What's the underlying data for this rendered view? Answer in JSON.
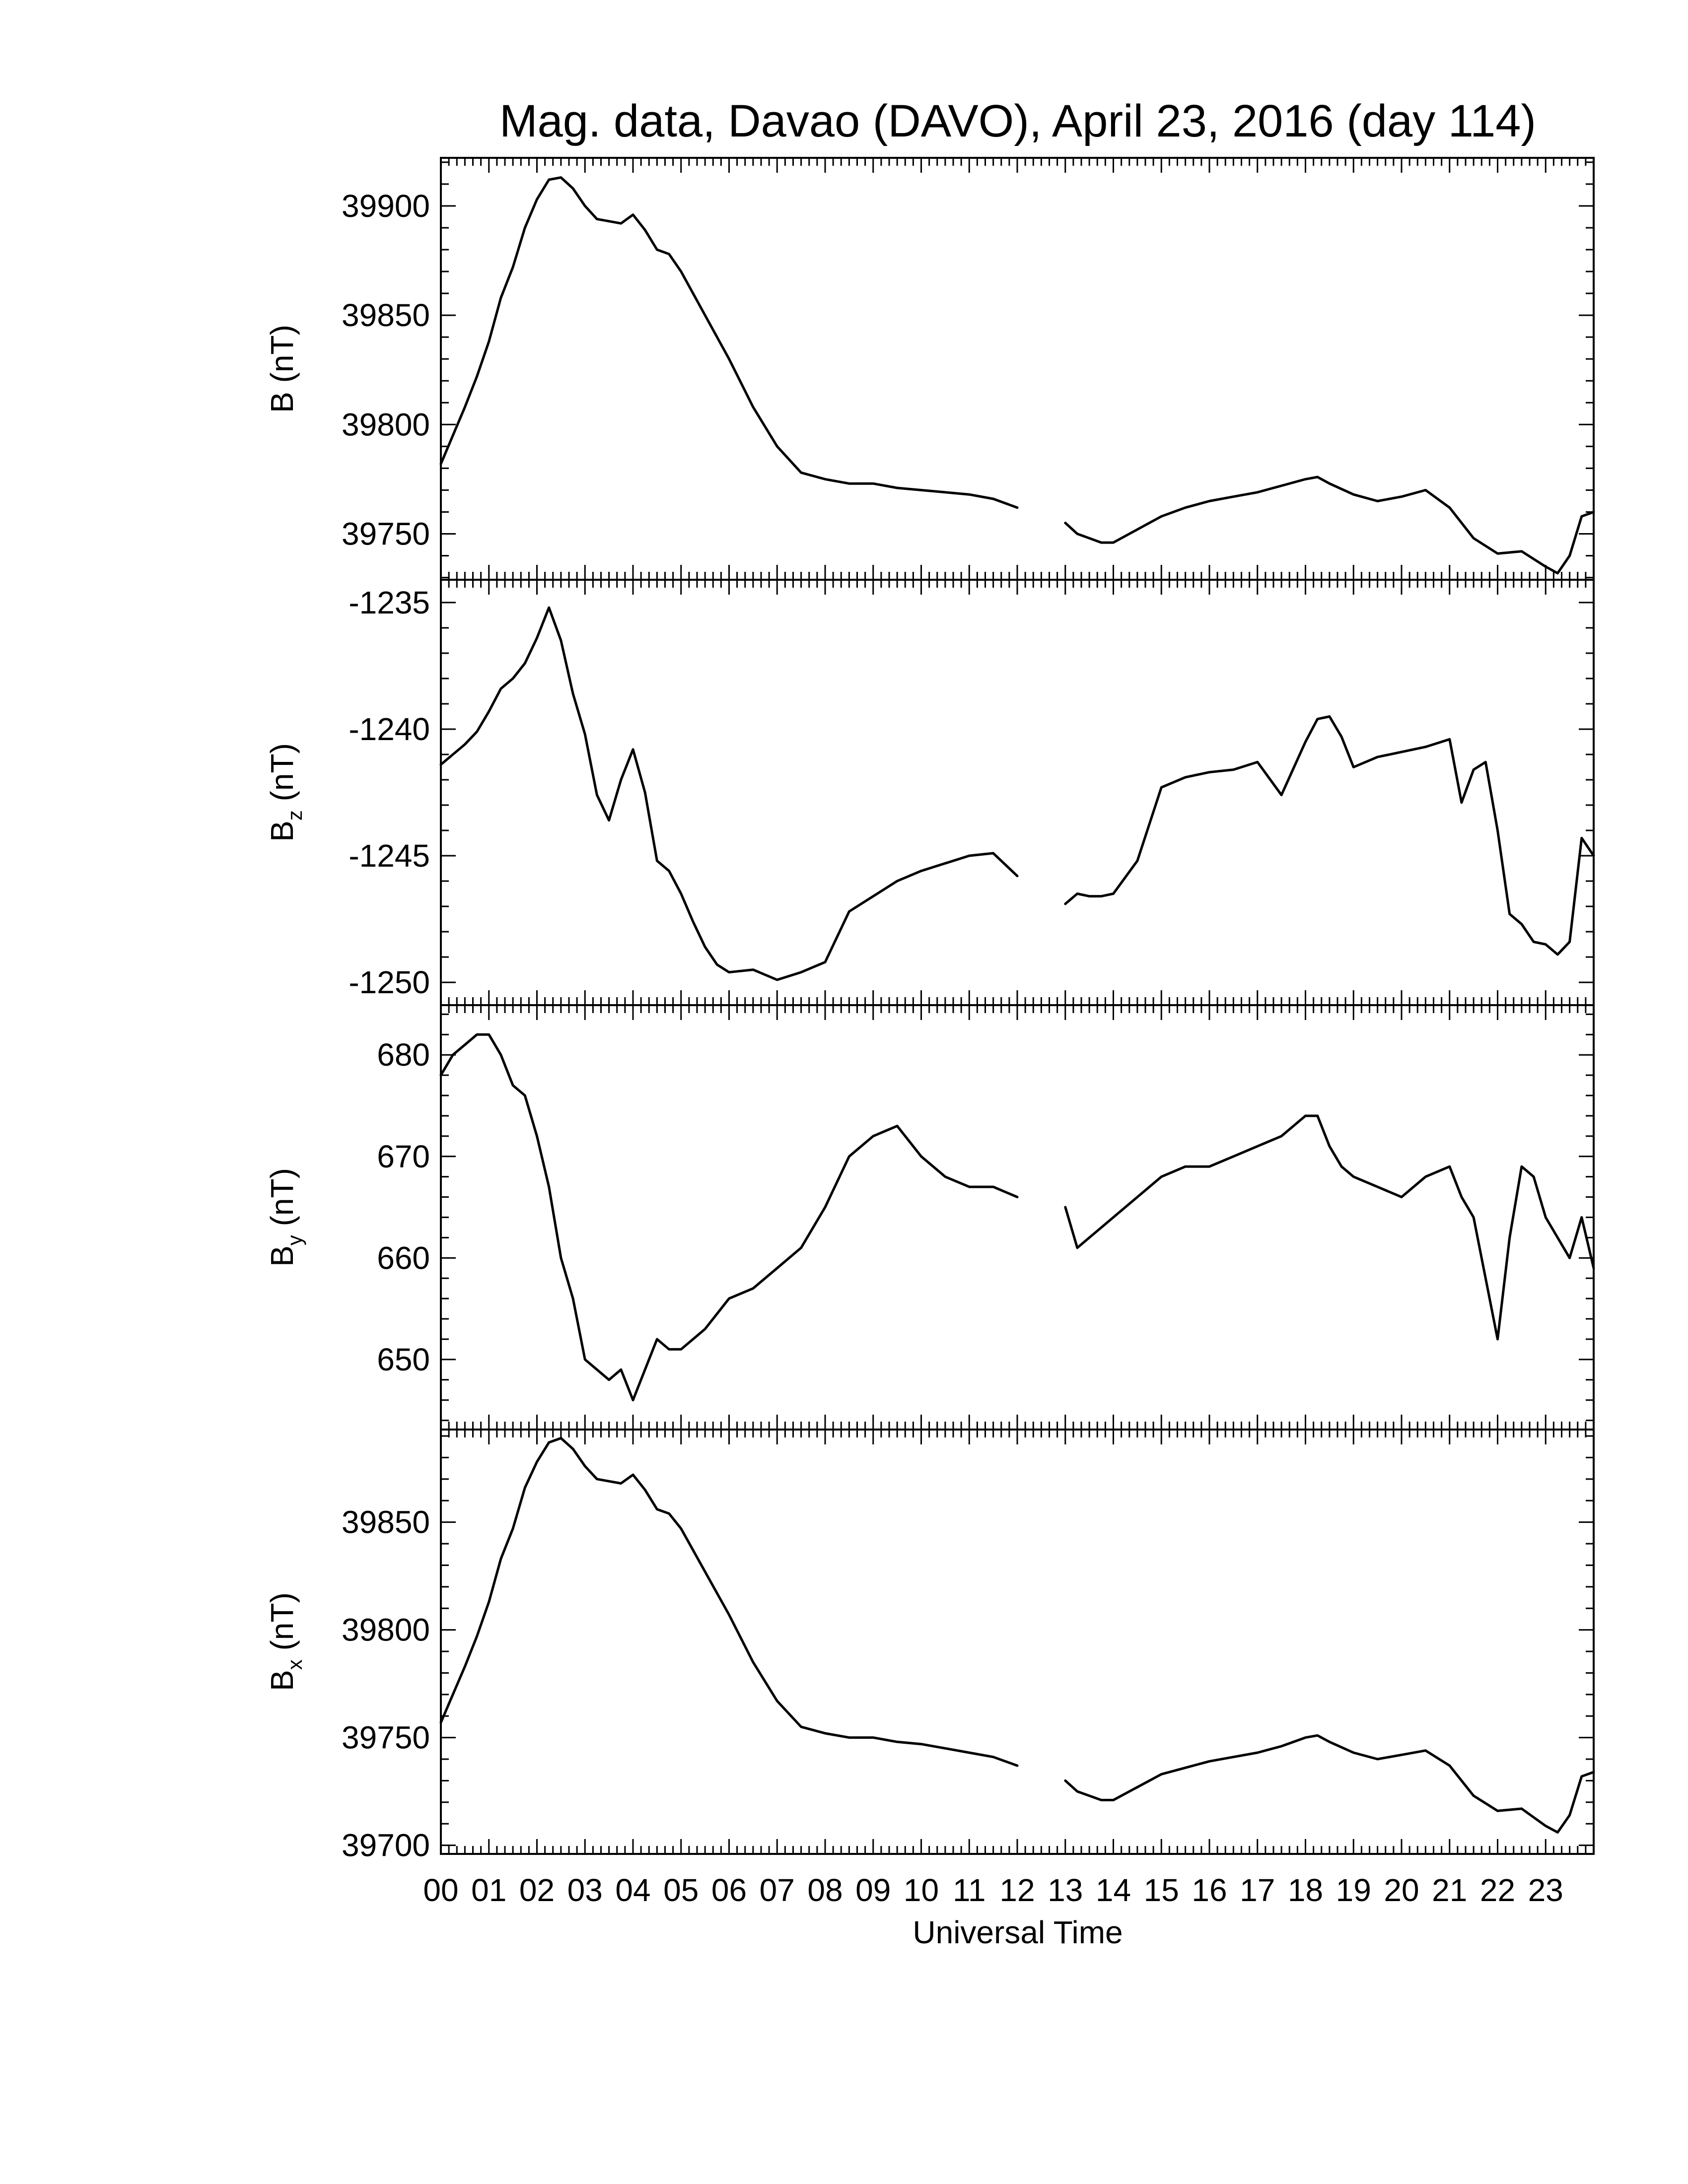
{
  "chart_data": {
    "type": "line",
    "title": "Mag. data, Davao (DAVO), April 23, 2016 (day 114)",
    "xlabel": "Universal Time",
    "x_unit": "hour (UT)",
    "xlim": [
      0,
      24
    ],
    "x_ticks": [
      "00",
      "01",
      "02",
      "03",
      "04",
      "05",
      "06",
      "07",
      "08",
      "09",
      "10",
      "11",
      "12",
      "13",
      "14",
      "15",
      "16",
      "17",
      "18",
      "19",
      "20",
      "21",
      "22",
      "23"
    ],
    "data_gap": [
      12.0,
      13.0
    ],
    "panels": [
      {
        "label_main": "B",
        "label_sub": "",
        "label_unit": "(nT)",
        "ylim": [
          39729,
          39922
        ],
        "y_ticks": [
          39750,
          39800,
          39850,
          39900
        ],
        "series": [
          {
            "x": [
              0,
              0.25,
              0.5,
              0.75,
              1,
              1.25,
              1.5,
              1.75,
              2,
              2.25,
              2.5,
              2.75,
              3,
              3.25,
              3.5,
              3.75,
              4,
              4.25,
              4.5,
              4.75,
              5,
              5.5,
              6,
              6.5,
              7,
              7.5,
              8,
              8.5,
              9,
              9.5,
              10,
              10.5,
              11,
              11.5,
              12,
              13,
              13.25,
              13.5,
              13.75,
              14,
              14.5,
              15,
              15.5,
              16,
              16.5,
              17,
              17.5,
              18,
              18.25,
              18.5,
              19,
              19.5,
              20,
              20.5,
              21,
              21.5,
              22,
              22.5,
              23,
              23.25,
              23.5,
              23.75,
              24
            ],
            "y": [
              39782,
              39795,
              39808,
              39822,
              39838,
              39858,
              39872,
              39890,
              39903,
              39912,
              39913,
              39908,
              39900,
              39894,
              39893,
              39892,
              39896,
              39889,
              39880,
              39878,
              39870,
              39850,
              39830,
              39808,
              39790,
              39778,
              39775,
              39773,
              39773,
              39771,
              39770,
              39769,
              39768,
              39766,
              39762,
              39755,
              39750,
              39748,
              39746,
              39746,
              39752,
              39758,
              39762,
              39765,
              39767,
              39769,
              39772,
              39775,
              39776,
              39773,
              39768,
              39765,
              39767,
              39770,
              39762,
              39748,
              39741,
              39742,
              39735,
              39732,
              39740,
              39758,
              39760
            ]
          }
        ]
      },
      {
        "label_main": "B",
        "label_sub": "z",
        "label_unit": "(nT)",
        "ylim": [
          -1250.9,
          -1234.1
        ],
        "y_ticks": [
          -1250,
          -1245,
          -1240,
          -1235
        ],
        "series": [
          {
            "x": [
              0,
              0.25,
              0.5,
              0.75,
              1,
              1.25,
              1.5,
              1.75,
              2,
              2.25,
              2.5,
              2.75,
              3,
              3.25,
              3.5,
              3.75,
              4,
              4.25,
              4.5,
              4.75,
              5,
              5.25,
              5.5,
              5.75,
              6,
              6.5,
              7,
              7.5,
              8,
              8.5,
              9,
              9.5,
              10,
              10.5,
              11,
              11.5,
              12,
              13,
              13.25,
              13.5,
              13.75,
              14,
              14.5,
              15,
              15.5,
              16,
              16.5,
              17,
              17.5,
              18,
              18.25,
              18.5,
              18.75,
              19,
              19.5,
              20,
              20.5,
              21,
              21.25,
              21.5,
              21.75,
              22,
              22.25,
              22.5,
              22.75,
              23,
              23.25,
              23.5,
              23.75,
              24
            ],
            "y": [
              -1241.4,
              -1241.0,
              -1240.6,
              -1240.1,
              -1239.3,
              -1238.4,
              -1238.0,
              -1237.4,
              -1236.4,
              -1235.2,
              -1236.5,
              -1238.6,
              -1240.2,
              -1242.6,
              -1243.6,
              -1242.0,
              -1240.8,
              -1242.5,
              -1245.2,
              -1245.6,
              -1246.5,
              -1247.6,
              -1248.6,
              -1249.3,
              -1249.6,
              -1249.5,
              -1249.9,
              -1249.6,
              -1249.2,
              -1247.2,
              -1246.6,
              -1246.0,
              -1245.6,
              -1245.3,
              -1245.0,
              -1244.9,
              -1245.8,
              -1246.9,
              -1246.5,
              -1246.6,
              -1246.6,
              -1246.5,
              -1245.2,
              -1242.3,
              -1241.9,
              -1241.7,
              -1241.6,
              -1241.3,
              -1242.6,
              -1240.5,
              -1239.6,
              -1239.5,
              -1240.3,
              -1241.5,
              -1241.1,
              -1240.9,
              -1240.7,
              -1240.4,
              -1242.9,
              -1241.6,
              -1241.3,
              -1244.0,
              -1247.3,
              -1247.7,
              -1248.4,
              -1248.5,
              -1248.9,
              -1248.4,
              -1244.3,
              -1245.0
            ]
          }
        ]
      },
      {
        "label_main": "B",
        "label_sub": "y",
        "label_unit": "(nT)",
        "ylim": [
          643.1,
          684.9
        ],
        "y_ticks": [
          650,
          660,
          670,
          680
        ],
        "series": [
          {
            "x": [
              0,
              0.25,
              0.5,
              0.75,
              1,
              1.25,
              1.5,
              1.75,
              2,
              2.25,
              2.5,
              2.75,
              3,
              3.25,
              3.5,
              3.75,
              4,
              4.25,
              4.5,
              4.75,
              5,
              5.5,
              6,
              6.5,
              7,
              7.5,
              8,
              8.5,
              9,
              9.5,
              10,
              10.5,
              11,
              11.5,
              12,
              13,
              13.25,
              13.5,
              13.75,
              14,
              14.5,
              15,
              15.5,
              16,
              16.5,
              17,
              17.5,
              18,
              18.25,
              18.5,
              18.75,
              19,
              19.5,
              20,
              20.5,
              21,
              21.25,
              21.5,
              21.75,
              22,
              22.25,
              22.5,
              22.75,
              23,
              23.25,
              23.5,
              23.75,
              24
            ],
            "y": [
              678,
              680,
              681,
              682,
              682,
              680,
              677,
              676,
              672,
              667,
              660,
              656,
              650,
              649,
              648,
              649,
              646,
              649,
              652,
              651,
              651,
              653,
              656,
              657,
              659,
              661,
              665,
              670,
              672,
              673,
              670,
              668,
              667,
              667,
              666,
              665,
              661,
              662,
              663,
              664,
              666,
              668,
              669,
              669,
              670,
              671,
              672,
              674,
              674,
              671,
              669,
              668,
              667,
              666,
              668,
              669,
              666,
              664,
              658,
              652,
              662,
              669,
              668,
              664,
              662,
              660,
              664,
              659
            ]
          }
        ]
      },
      {
        "label_main": "B",
        "label_sub": "x",
        "label_unit": "(nT)",
        "ylim": [
          39696,
          39893
        ],
        "y_ticks": [
          39700,
          39750,
          39800,
          39850
        ],
        "series": [
          {
            "x": [
              0,
              0.25,
              0.5,
              0.75,
              1,
              1.25,
              1.5,
              1.75,
              2,
              2.25,
              2.5,
              2.75,
              3,
              3.25,
              3.5,
              3.75,
              4,
              4.25,
              4.5,
              4.75,
              5,
              5.5,
              6,
              6.5,
              7,
              7.5,
              8,
              8.5,
              9,
              9.5,
              10,
              10.5,
              11,
              11.5,
              12,
              13,
              13.25,
              13.5,
              13.75,
              14,
              14.5,
              15,
              15.5,
              16,
              16.5,
              17,
              17.5,
              18,
              18.25,
              18.5,
              19,
              19.5,
              20,
              20.5,
              21,
              21.5,
              22,
              22.5,
              23,
              23.25,
              23.5,
              23.75,
              24
            ],
            "y": [
              39757,
              39770,
              39783,
              39797,
              39813,
              39833,
              39847,
              39866,
              39878,
              39887,
              39889,
              39884,
              39876,
              39870,
              39869,
              39868,
              39872,
              39865,
              39856,
              39854,
              39847,
              39827,
              39807,
              39785,
              39767,
              39755,
              39752,
              39750,
              39750,
              39748,
              39747,
              39745,
              39743,
              39741,
              39737,
              39730,
              39725,
              39723,
              39721,
              39721,
              39727,
              39733,
              39736,
              39739,
              39741,
              39743,
              39746,
              39750,
              39751,
              39748,
              39743,
              39740,
              39742,
              39744,
              39737,
              39723,
              39716,
              39717,
              39709,
              39706,
              39714,
              39732,
              39734
            ]
          }
        ]
      }
    ]
  }
}
